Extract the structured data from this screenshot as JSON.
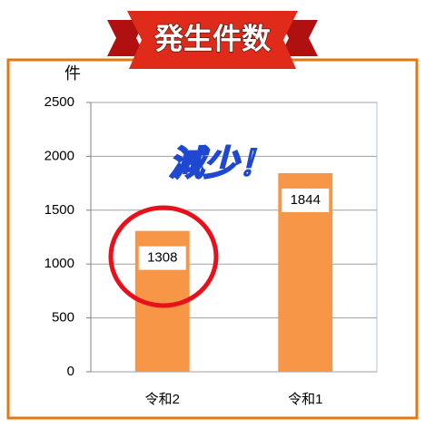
{
  "chart_data": {
    "type": "bar",
    "title": "発生件数",
    "y_label": "件",
    "annotation": "減少！",
    "categories": [
      "令和2",
      "令和1"
    ],
    "values": [
      1308,
      1844
    ],
    "color": "#f79646",
    "ylim": [
      0,
      2500
    ],
    "yticks": [
      0,
      500,
      1000,
      1500,
      2000,
      2500
    ],
    "grid": true
  }
}
